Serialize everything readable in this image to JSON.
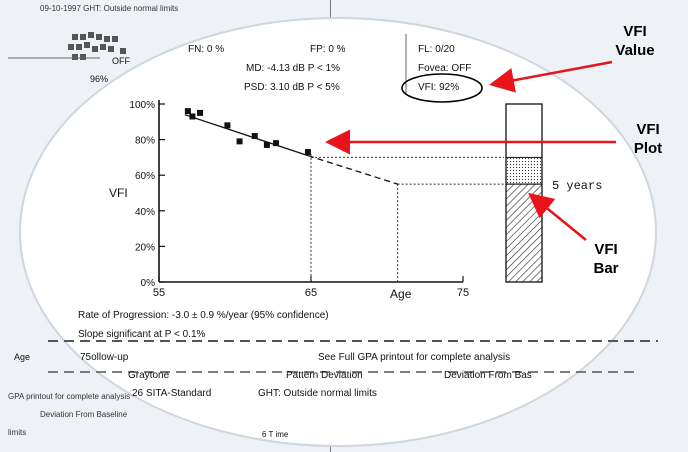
{
  "background": {
    "header": "09-10-1997   GHT: Outside normal limits",
    "fn_left_fragment": "OFF",
    "pct_left_fragment": "96%",
    "age_label": "Age",
    "followup": "75ollow-up",
    "sita": "26 SITA-Standard",
    "gpa_left": "GPA printout for complete analysis",
    "deviation_left": "Deviation From Baseline",
    "limits": "limits",
    "time_fragment": "6 T ime"
  },
  "reliability": {
    "fn": "FN:  0 %",
    "fp": "FP:  0 %",
    "fl": "FL: 0/20",
    "md": "MD:  -4.13 dB  P < 1%",
    "psd": "PSD:  3.10 dB  P < 5%",
    "fovea": "Fovea: OFF",
    "vfi": "VFI:  92%"
  },
  "summary": {
    "rate": "Rate of Progression: -3.0 ± 0.9 %/year (95% confidence)",
    "slope": "Slope significant at P < 0.1%",
    "see_full": "See Full GPA printout for complete analysis",
    "graytone": "Graytone",
    "pattern": "Pattern Deviation",
    "deviation": "Deviation From Bas",
    "sita": "26 SITA-Standard",
    "ght": "GHT: Outside normal limits"
  },
  "callouts": {
    "vfi_value": [
      "VFI",
      "Value"
    ],
    "vfi_plot": [
      "VFI",
      "Plot"
    ],
    "vfi_bar": [
      "VFI",
      "Bar"
    ],
    "five_years": "5 years"
  },
  "colors": {
    "ink": "#111111",
    "callout_arrow": "#e8141c",
    "background": "#eef1f5"
  },
  "chart_data": {
    "type": "scatter",
    "ylabel": "VFI",
    "xlabel": "Age",
    "xlim": [
      55,
      75
    ],
    "ylim": [
      0,
      100
    ],
    "x_ticks": [
      55,
      65,
      75
    ],
    "y_ticks": [
      0,
      20,
      40,
      60,
      80,
      100
    ],
    "y_tick_labels": [
      "0%",
      "20%",
      "40%",
      "60%",
      "80%",
      "100%"
    ],
    "points": [
      {
        "x": 56.9,
        "y": 96
      },
      {
        "x": 57.2,
        "y": 93
      },
      {
        "x": 57.7,
        "y": 95
      },
      {
        "x": 59.5,
        "y": 88
      },
      {
        "x": 60.3,
        "y": 79
      },
      {
        "x": 61.3,
        "y": 82
      },
      {
        "x": 62.1,
        "y": 77
      },
      {
        "x": 62.7,
        "y": 78
      },
      {
        "x": 64.8,
        "y": 73
      }
    ],
    "regression": {
      "x": [
        56.7,
        64.8
      ],
      "y": [
        94,
        71
      ]
    },
    "projection": {
      "x": [
        64.8,
        70.7
      ],
      "y": [
        71,
        55
      ]
    },
    "reference_lines": [
      {
        "axis": "x",
        "value": 65
      },
      {
        "axis": "x",
        "value": 70.7
      },
      {
        "axis": "y",
        "value": 70
      },
      {
        "axis": "y",
        "value": 55
      }
    ],
    "bar": {
      "current_vfi": 70,
      "projected_vfi": 55,
      "label": "5 years"
    }
  }
}
